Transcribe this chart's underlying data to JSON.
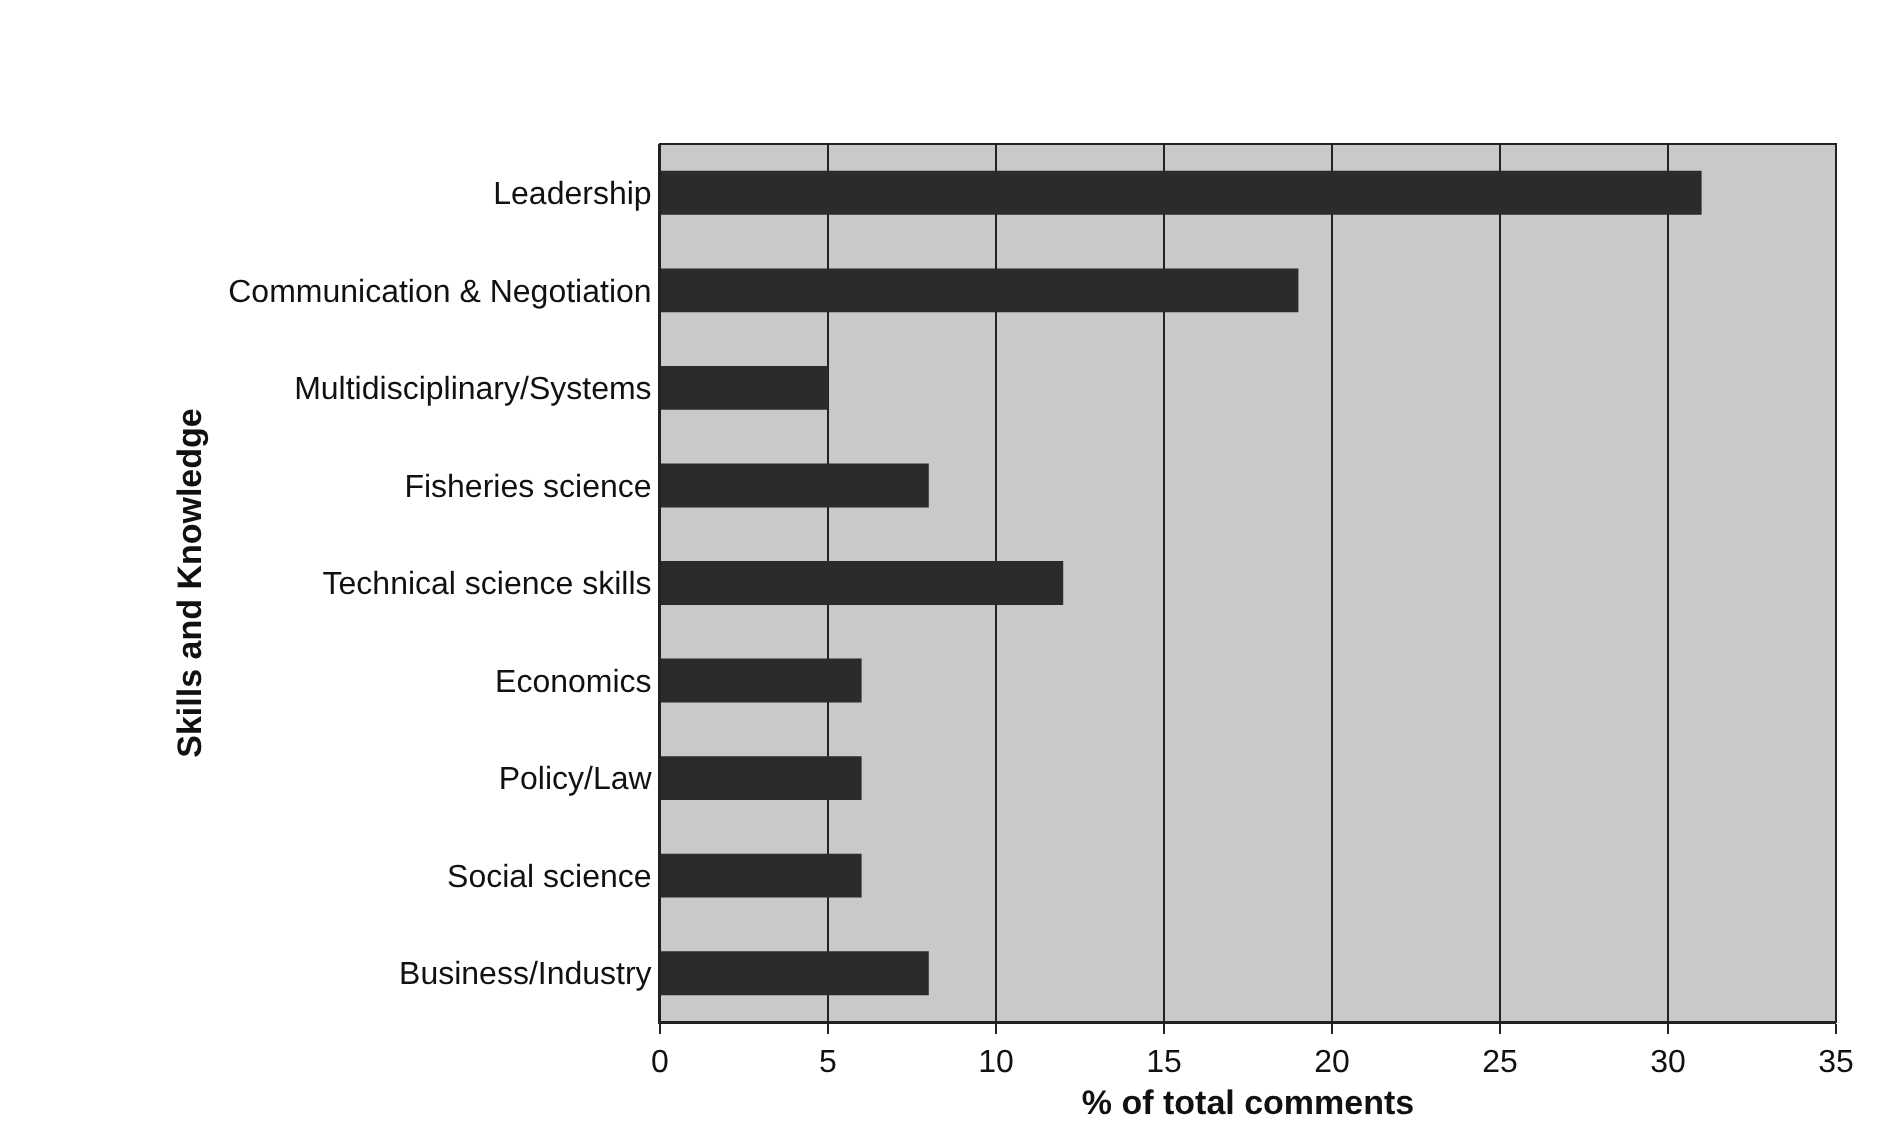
{
  "chart_data": {
    "type": "bar",
    "orientation": "horizontal",
    "xlabel": "% of total comments",
    "ylabel": "Skills and Knowledge",
    "categories": [
      "Leadership",
      "Communication & Negotiation",
      "Multidisciplinary/Systems",
      "Fisheries science",
      "Technical science skills",
      "Economics",
      "Policy/Law",
      "Social science",
      "Business/Industry"
    ],
    "values": [
      31,
      19,
      5,
      8,
      12,
      6,
      6,
      6,
      8
    ],
    "color": "#2b2b2b",
    "xlim": [
      0,
      35
    ],
    "xticks": [
      0,
      5,
      10,
      15,
      20,
      25,
      30,
      35
    ],
    "grid": "x"
  }
}
